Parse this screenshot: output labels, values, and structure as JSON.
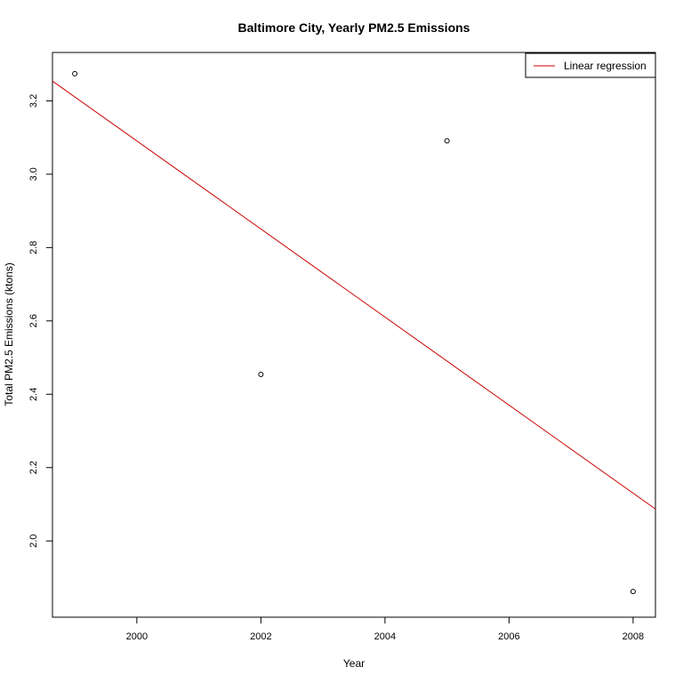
{
  "chart_data": {
    "type": "scatter",
    "title": "Baltimore City, Yearly PM2.5 Emissions",
    "xlabel": "Year",
    "ylabel": "Total PM2.5 Emissions (ktons)",
    "xlim": [
      1998.64,
      2008.36
    ],
    "ylim": [
      1.792,
      3.332
    ],
    "x_ticks": [
      2000,
      2002,
      2004,
      2006,
      2008
    ],
    "y_ticks": [
      2.0,
      2.2,
      2.4,
      2.6,
      2.8,
      3.0,
      3.2
    ],
    "series": [
      {
        "points": [
          {
            "x": 1999,
            "y": 3.274
          },
          {
            "x": 2002,
            "y": 2.454
          },
          {
            "x": 2005,
            "y": 3.091
          },
          {
            "x": 2008,
            "y": 1.862
          }
        ]
      }
    ],
    "regression": {
      "name": "Linear regression",
      "color": "#cc0000",
      "x": [
        1998.64,
        2008.36
      ],
      "y": [
        3.254,
        2.087
      ]
    },
    "legend": {
      "position": "top-right",
      "entries": [
        {
          "label": "Linear regression",
          "color": "#cc0000"
        }
      ]
    },
    "grid": false
  }
}
